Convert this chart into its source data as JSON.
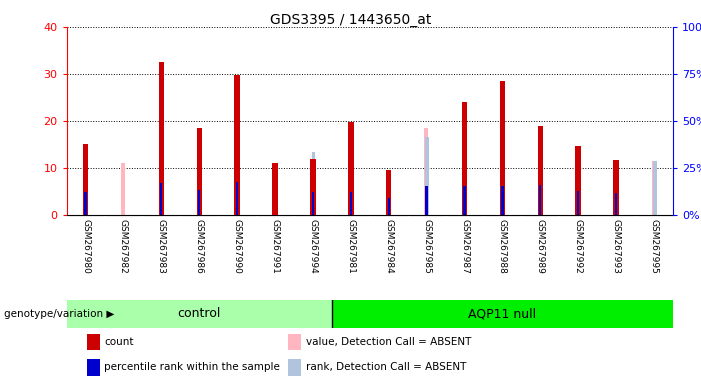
{
  "title": "GDS3395 / 1443650_at",
  "samples": [
    "GSM267980",
    "GSM267982",
    "GSM267983",
    "GSM267986",
    "GSM267990",
    "GSM267991",
    "GSM267994",
    "GSM267981",
    "GSM267984",
    "GSM267985",
    "GSM267987",
    "GSM267988",
    "GSM267989",
    "GSM267992",
    "GSM267993",
    "GSM267995"
  ],
  "n_control": 7,
  "count_values": [
    15.2,
    0,
    32.5,
    18.5,
    29.8,
    11.0,
    12.0,
    19.7,
    9.5,
    0,
    24.0,
    28.5,
    19.0,
    14.7,
    11.8,
    0
  ],
  "percentile_values": [
    12.5,
    0,
    17.0,
    13.5,
    17.5,
    0,
    12.0,
    12.0,
    9.0,
    15.5,
    15.5,
    15.5,
    16.0,
    13.0,
    11.5,
    0
  ],
  "absent_value_values": [
    0,
    11.0,
    0,
    0,
    0,
    0,
    11.5,
    0,
    0,
    18.5,
    0,
    0,
    0,
    0,
    0,
    11.5
  ],
  "absent_rank_values": [
    0,
    0,
    0,
    0,
    0,
    0,
    13.5,
    0,
    0,
    16.5,
    0,
    0,
    0,
    0,
    0,
    11.5
  ],
  "ylim_left": [
    0,
    40
  ],
  "ylim_right": [
    0,
    100
  ],
  "left_ticks": [
    0,
    10,
    20,
    30,
    40
  ],
  "right_ticks": [
    0,
    25,
    50,
    75,
    100
  ],
  "bar_width": 0.12,
  "color_count": "#CC0000",
  "color_percentile": "#0000CC",
  "color_absent_value": "#FFB6C1",
  "color_absent_rank": "#B0C4DE",
  "background_color": "#FFFFFF",
  "plot_bg_color": "#FFFFFF",
  "legend_labels": [
    "count",
    "percentile rank within the sample",
    "value, Detection Call = ABSENT",
    "rank, Detection Call = ABSENT"
  ],
  "genotype_label": "genotype/variation",
  "control_label": "control",
  "aqp11_label": "AQP11 null",
  "control_color": "#AAFFAA",
  "aqp11_color": "#00EE00"
}
